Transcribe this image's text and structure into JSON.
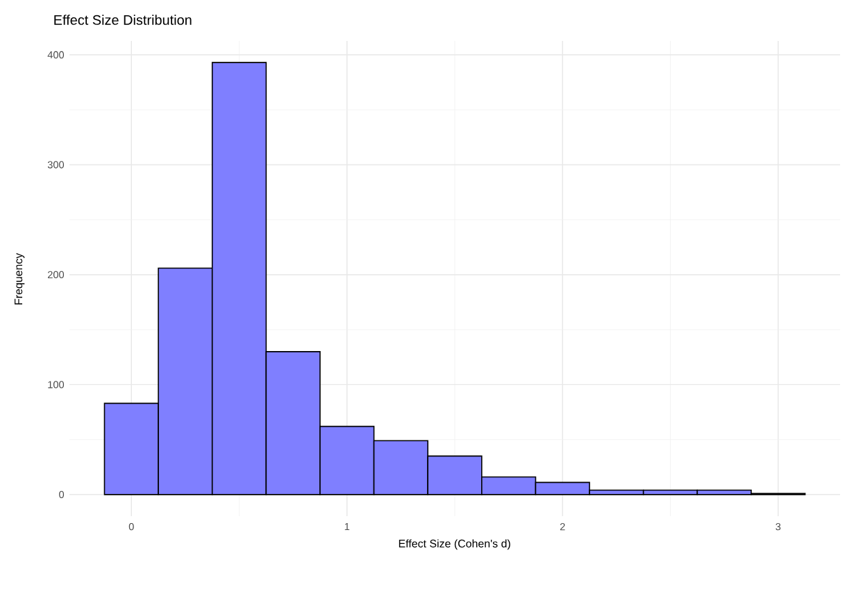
{
  "chart_data": {
    "type": "histogram",
    "title": "Effect Size Distribution",
    "xlabel": "Effect Size (Cohen's d)",
    "ylabel": "Frequency",
    "bins": [
      -0.125,
      0.125,
      0.375,
      0.625,
      0.875,
      1.125,
      1.375,
      1.625,
      1.875,
      2.125,
      2.375,
      2.625,
      2.875,
      3.125
    ],
    "values": [
      83,
      206,
      393,
      130,
      62,
      49,
      35,
      16,
      11,
      4,
      4,
      4,
      1
    ],
    "color": "#7f7fff",
    "xlim": [
      -0.2875,
      3.2875
    ],
    "ylim": [
      -19.65,
      412.65
    ],
    "xticks": [
      0,
      1,
      2,
      3
    ],
    "yticks": [
      0,
      100,
      200,
      300,
      400
    ],
    "grid": true
  }
}
